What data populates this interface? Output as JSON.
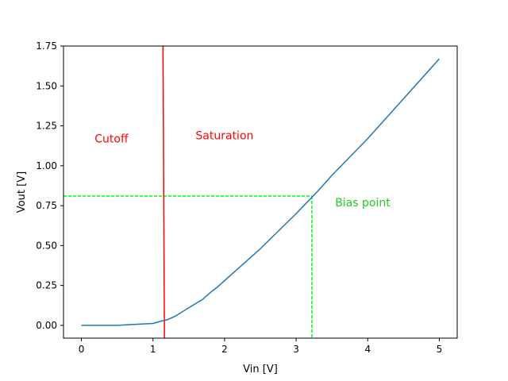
{
  "chart_data": {
    "type": "line",
    "title": "",
    "xlabel": "Vin [V]",
    "ylabel": "Vout [V]",
    "xlim": [
      -0.25,
      5.25
    ],
    "ylim": [
      -0.08,
      1.75
    ],
    "xticks": [
      0,
      1,
      2,
      3,
      4,
      5
    ],
    "yticks": [
      0.0,
      0.25,
      0.5,
      0.75,
      1.0,
      1.25,
      1.5,
      1.75
    ],
    "ytick_labels": [
      "0.00",
      "0.25",
      "0.50",
      "0.75",
      "1.00",
      "1.25",
      "1.50",
      "1.75"
    ],
    "xtick_labels": [
      "0",
      "1",
      "2",
      "3",
      "4",
      "5"
    ],
    "grid": false,
    "series": [
      {
        "color": "#1f77b4",
        "x": [
          0,
          0.5,
          0.7,
          1.0,
          1.1,
          1.2,
          1.3,
          1.5,
          1.7,
          1.8,
          1.9,
          2.0,
          2.5,
          3.0,
          3.3,
          3.5,
          4.0,
          4.5,
          5.0
        ],
        "y": [
          0.0,
          0.0,
          0.005,
          0.012,
          0.025,
          0.035,
          0.055,
          0.11,
          0.165,
          0.205,
          0.24,
          0.28,
          0.48,
          0.7,
          0.84,
          0.94,
          1.17,
          1.42,
          1.67
        ]
      }
    ],
    "vertical_lines": [
      {
        "x_bottom": 1.16,
        "x_top": 1.14,
        "color": "#ff0000",
        "style": "solid"
      }
    ],
    "bias_point": {
      "x": 3.22,
      "y": 0.81,
      "color": "#00ff00",
      "style": "dashed"
    },
    "annotations": [
      {
        "text": "Cutoff",
        "x": 0.42,
        "y": 1.17,
        "color": "#ff0000"
      },
      {
        "text": "Saturation",
        "x": 2.0,
        "y": 1.19,
        "color": "#ff0000"
      },
      {
        "text": "Bias point",
        "x": 3.93,
        "y": 0.77,
        "color": "#22cc22"
      }
    ]
  }
}
